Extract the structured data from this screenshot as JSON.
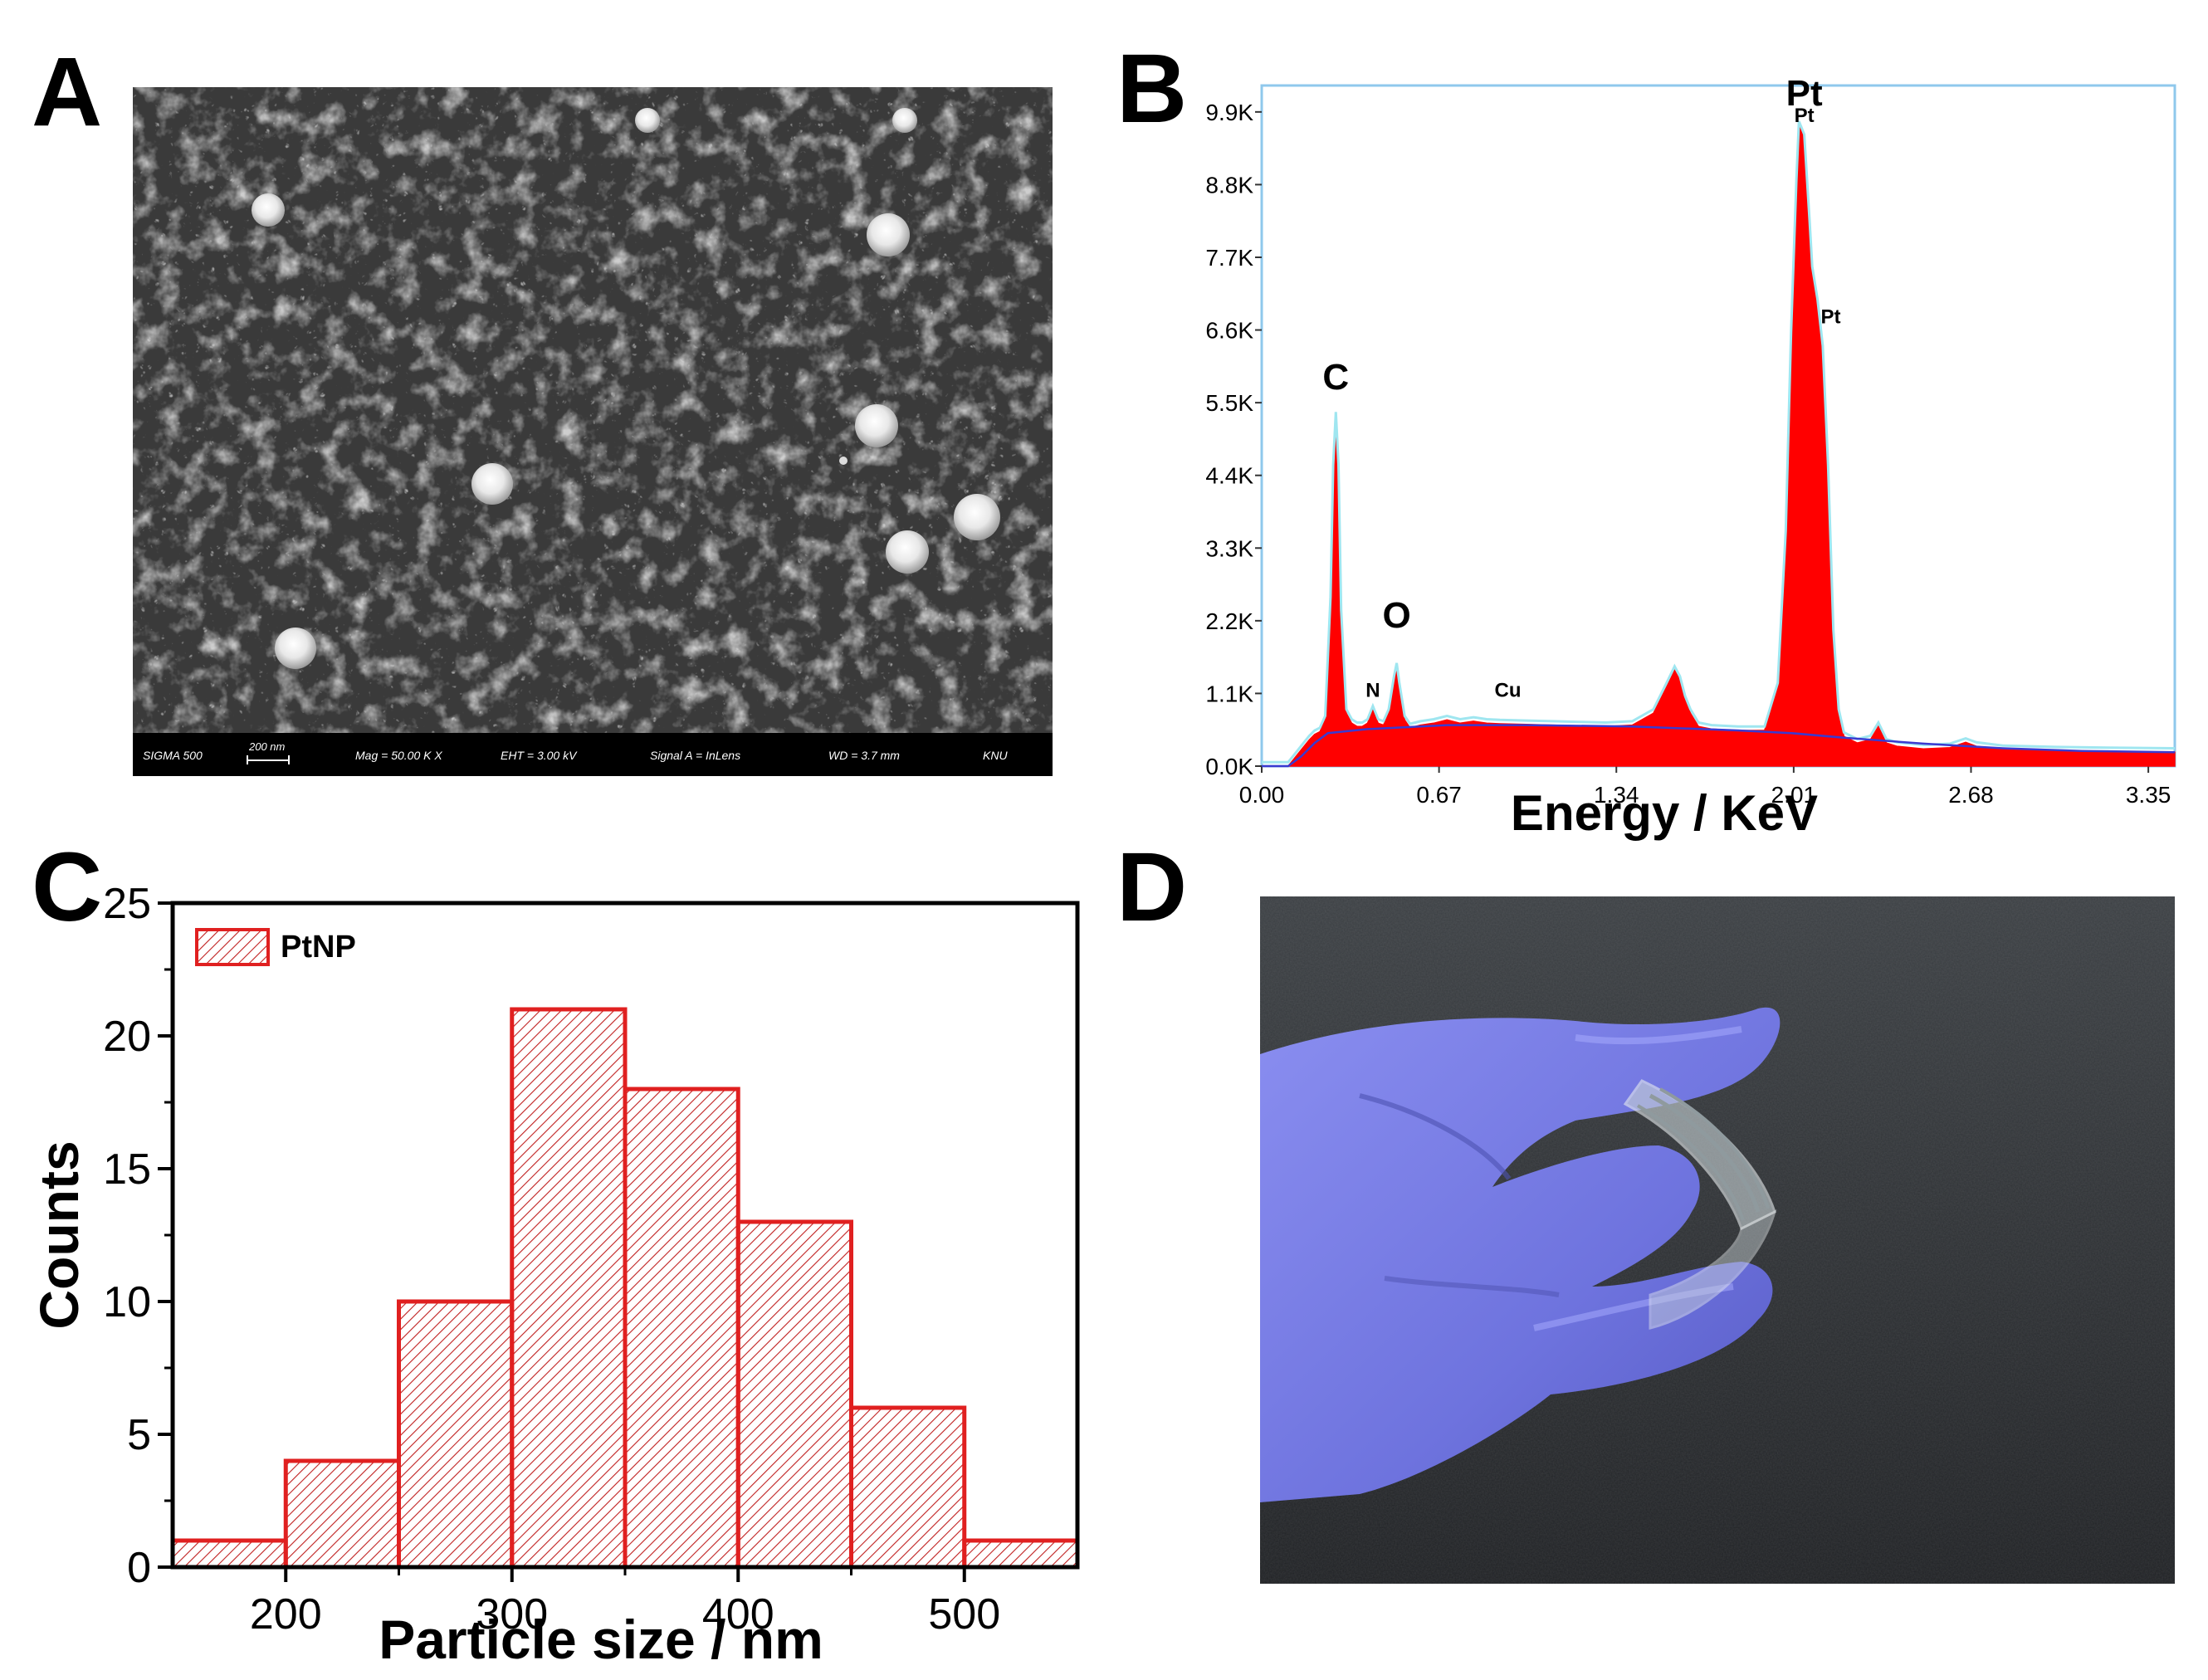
{
  "panels": {
    "A": {
      "letter": "A",
      "scale_bar": {
        "sigma": "SIGMA 500",
        "scale": "200 nm",
        "mag": "Mag = 50.00 K X",
        "eht": "EHT = 3.00 kV",
        "signal": "Signal A = InLens",
        "wd": "WD = 3.7 mm",
        "org": "KNU"
      }
    },
    "B": {
      "letter": "B"
    },
    "C": {
      "letter": "C"
    },
    "D": {
      "letter": "D"
    }
  },
  "chart_data": [
    {
      "panel": "B",
      "type": "area",
      "title": "",
      "xlabel": "Energy / KeV",
      "ylabel": "",
      "xlim": [
        0.0,
        3.45
      ],
      "ylim": [
        0,
        10300
      ],
      "x_ticks": [
        "0.00",
        "0.67",
        "1.34",
        "2.01",
        "2.68",
        "3.35"
      ],
      "x_tick_values": [
        0.0,
        0.67,
        1.34,
        2.01,
        2.68,
        3.35
      ],
      "y_ticks": [
        "0.0K",
        "1.1K",
        "2.2K",
        "3.3K",
        "4.4K",
        "5.5K",
        "6.6K",
        "7.7K",
        "8.8K",
        "9.9K"
      ],
      "y_tick_values": [
        0,
        1100,
        2200,
        3300,
        4400,
        5500,
        6600,
        7700,
        8800,
        9900
      ],
      "fill_color": "#ff0000",
      "fit_color": "#9fe6f0",
      "background_color": "#3a3ad0",
      "spectrum": {
        "x": [
          0.0,
          0.05,
          0.1,
          0.12,
          0.15,
          0.18,
          0.2,
          0.22,
          0.24,
          0.26,
          0.27,
          0.28,
          0.29,
          0.3,
          0.32,
          0.34,
          0.36,
          0.38,
          0.4,
          0.42,
          0.44,
          0.46,
          0.48,
          0.5,
          0.51,
          0.52,
          0.54,
          0.56,
          0.58,
          0.6,
          0.65,
          0.7,
          0.75,
          0.8,
          0.85,
          0.9,
          1.0,
          1.1,
          1.2,
          1.3,
          1.4,
          1.48,
          1.53,
          1.56,
          1.58,
          1.6,
          1.62,
          1.65,
          1.7,
          1.8,
          1.9,
          1.95,
          1.98,
          2.0,
          2.02,
          2.03,
          2.05,
          2.07,
          2.08,
          2.1,
          2.12,
          2.14,
          2.16,
          2.18,
          2.2,
          2.25,
          2.3,
          2.33,
          2.36,
          2.4,
          2.5,
          2.6,
          2.66,
          2.7,
          2.8,
          3.0,
          3.2,
          3.45
        ],
        "y": [
          0,
          0,
          0,
          100,
          250,
          400,
          480,
          520,
          700,
          2500,
          4500,
          5300,
          4500,
          2300,
          800,
          650,
          600,
          600,
          650,
          850,
          650,
          620,
          800,
          1300,
          1500,
          1200,
          700,
          580,
          600,
          620,
          650,
          700,
          650,
          680,
          650,
          640,
          630,
          620,
          610,
          600,
          620,
          800,
          1200,
          1450,
          1300,
          1000,
          800,
          600,
          560,
          540,
          540,
          1200,
          3500,
          6500,
          8800,
          9700,
          9500,
          8200,
          7500,
          7000,
          6300,
          4500,
          2000,
          800,
          450,
          350,
          400,
          600,
          350,
          300,
          260,
          280,
          360,
          300,
          250,
          230,
          220,
          210
        ]
      },
      "background": {
        "x": [
          0.0,
          0.1,
          0.15,
          0.2,
          0.25,
          0.4,
          0.7,
          1.0,
          1.4,
          1.8,
          2.0,
          2.2,
          2.5,
          2.8,
          3.1,
          3.45
        ],
        "y": [
          0,
          0,
          150,
          350,
          500,
          560,
          620,
          620,
          600,
          540,
          500,
          430,
          340,
          270,
          230,
          210
        ]
      },
      "annotations": [
        {
          "text": "C",
          "x": 0.28,
          "y": 5700,
          "size": "large"
        },
        {
          "text": "O",
          "x": 0.51,
          "y": 2100,
          "size": "large"
        },
        {
          "text": "N",
          "x": 0.42,
          "y": 1050,
          "size": "small"
        },
        {
          "text": "Cu",
          "x": 0.93,
          "y": 1050,
          "size": "small"
        },
        {
          "text": "Pt",
          "x": 2.05,
          "y": 10000,
          "size": "large"
        },
        {
          "text": "Pt",
          "x": 2.05,
          "y": 9750,
          "size": "small"
        },
        {
          "text": "Pt",
          "x": 2.15,
          "y": 6700,
          "size": "small"
        }
      ]
    },
    {
      "panel": "C",
      "type": "bar",
      "title": "",
      "xlabel": "Particle size / nm",
      "ylabel": "Counts",
      "xlim": [
        150,
        550
      ],
      "ylim": [
        0,
        25
      ],
      "x_ticks": [
        200,
        300,
        400,
        500
      ],
      "y_ticks": [
        0,
        5,
        10,
        15,
        20,
        25
      ],
      "bin_edges": [
        150,
        200,
        250,
        300,
        350,
        400,
        450,
        500,
        550
      ],
      "series": [
        {
          "name": "PtNP",
          "values": [
            1,
            4,
            10,
            21,
            18,
            13,
            6,
            1
          ]
        }
      ],
      "bar_color": "#e02020",
      "legend": "top-left"
    }
  ]
}
